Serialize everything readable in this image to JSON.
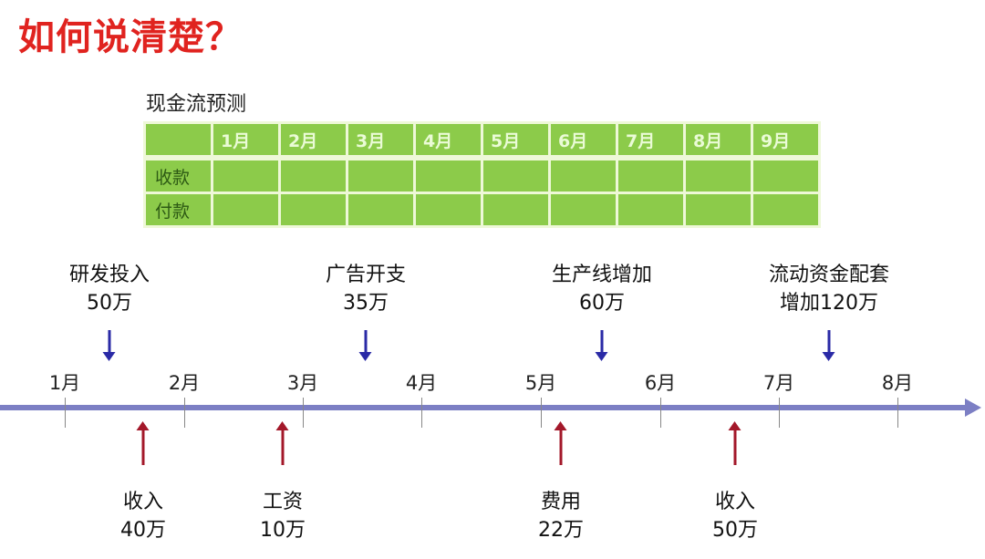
{
  "title": "如何说清楚？",
  "table": {
    "title": "现金流预测",
    "months": [
      "1月",
      "2月",
      "3月",
      "4月",
      "5月",
      "6月",
      "7月",
      "8月",
      "9月"
    ],
    "rows": [
      "收款",
      "付款"
    ],
    "color": "#8ccb4a"
  },
  "timeline": {
    "months": [
      "1月",
      "2月",
      "3月",
      "4月",
      "5月",
      "6月",
      "7月",
      "8月"
    ],
    "axis_color": "#7c7fc4",
    "payments": [
      {
        "label": "研发投入",
        "amount": "50万"
      },
      {
        "label": "广告开支",
        "amount": "35万"
      },
      {
        "label": "生产线增加",
        "amount": "60万"
      },
      {
        "label": "流动资金配套",
        "amount": "增加120万"
      }
    ],
    "receipts": [
      {
        "label": "收入",
        "amount": "40万"
      },
      {
        "label": "工资",
        "amount": "10万"
      },
      {
        "label": "费用",
        "amount": "22万"
      },
      {
        "label": "收入",
        "amount": "50万"
      }
    ],
    "payment_arrow_color": "#2a2aa6",
    "receipt_arrow_color": "#a3182a"
  }
}
